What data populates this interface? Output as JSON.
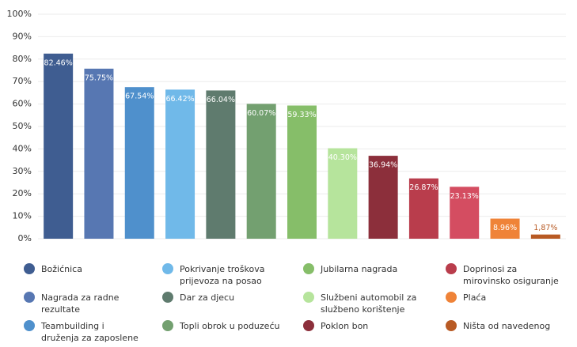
{
  "chart_data": {
    "type": "bar",
    "categories": [
      "Božićnica",
      "Nagrada za radne rezultate",
      "Teambuilding i druženja za zaposlene",
      "Pokrivanje troškova prijevoza na posao",
      "Dar za djecu",
      "Topli obrok u poduzeću",
      "Jubilarna nagrada",
      "Službeni automobil za službeno korištenje",
      "Poklon bon",
      "Doprinosi za mirovinsko osiguranje",
      null,
      "Plaća",
      "Ništa od navedenog"
    ],
    "values": [
      82.46,
      75.75,
      67.54,
      66.42,
      66.04,
      60.07,
      59.33,
      40.3,
      36.94,
      26.87,
      23.13,
      8.96,
      1.87
    ],
    "value_labels": [
      "82.46%",
      "75.75%",
      "67.54%",
      "66.42%",
      "66.04%",
      "60.07%",
      "59.33%",
      "40.30%",
      "36.94%",
      "26.87%",
      "23.13%",
      "8.96%",
      "1,87%"
    ],
    "colors": [
      "#3f5d91",
      "#5777b2",
      "#4f90cc",
      "#70b9e9",
      "#5f7b6e",
      "#73a070",
      "#86be69",
      "#b6e49c",
      "#8c2f3b",
      "#b93d4c",
      "#d44d61",
      "#ef8338",
      "#b85a24"
    ],
    "ylim": [
      0,
      100
    ],
    "yticks": [
      {
        "value": 0,
        "label": "0%"
      },
      {
        "value": 10,
        "label": "10%"
      },
      {
        "value": 20,
        "label": "20%"
      },
      {
        "value": 30,
        "label": "30%"
      },
      {
        "value": 40,
        "label": "40%"
      },
      {
        "value": 50,
        "label": "50%"
      },
      {
        "value": 60,
        "label": "60%"
      },
      {
        "value": 70,
        "label": "70%"
      },
      {
        "value": 80,
        "label": "80%"
      },
      {
        "value": 90,
        "label": "90%"
      },
      {
        "value": 100,
        "label": "100%"
      }
    ],
    "grid": true,
    "legend": "bottom"
  }
}
